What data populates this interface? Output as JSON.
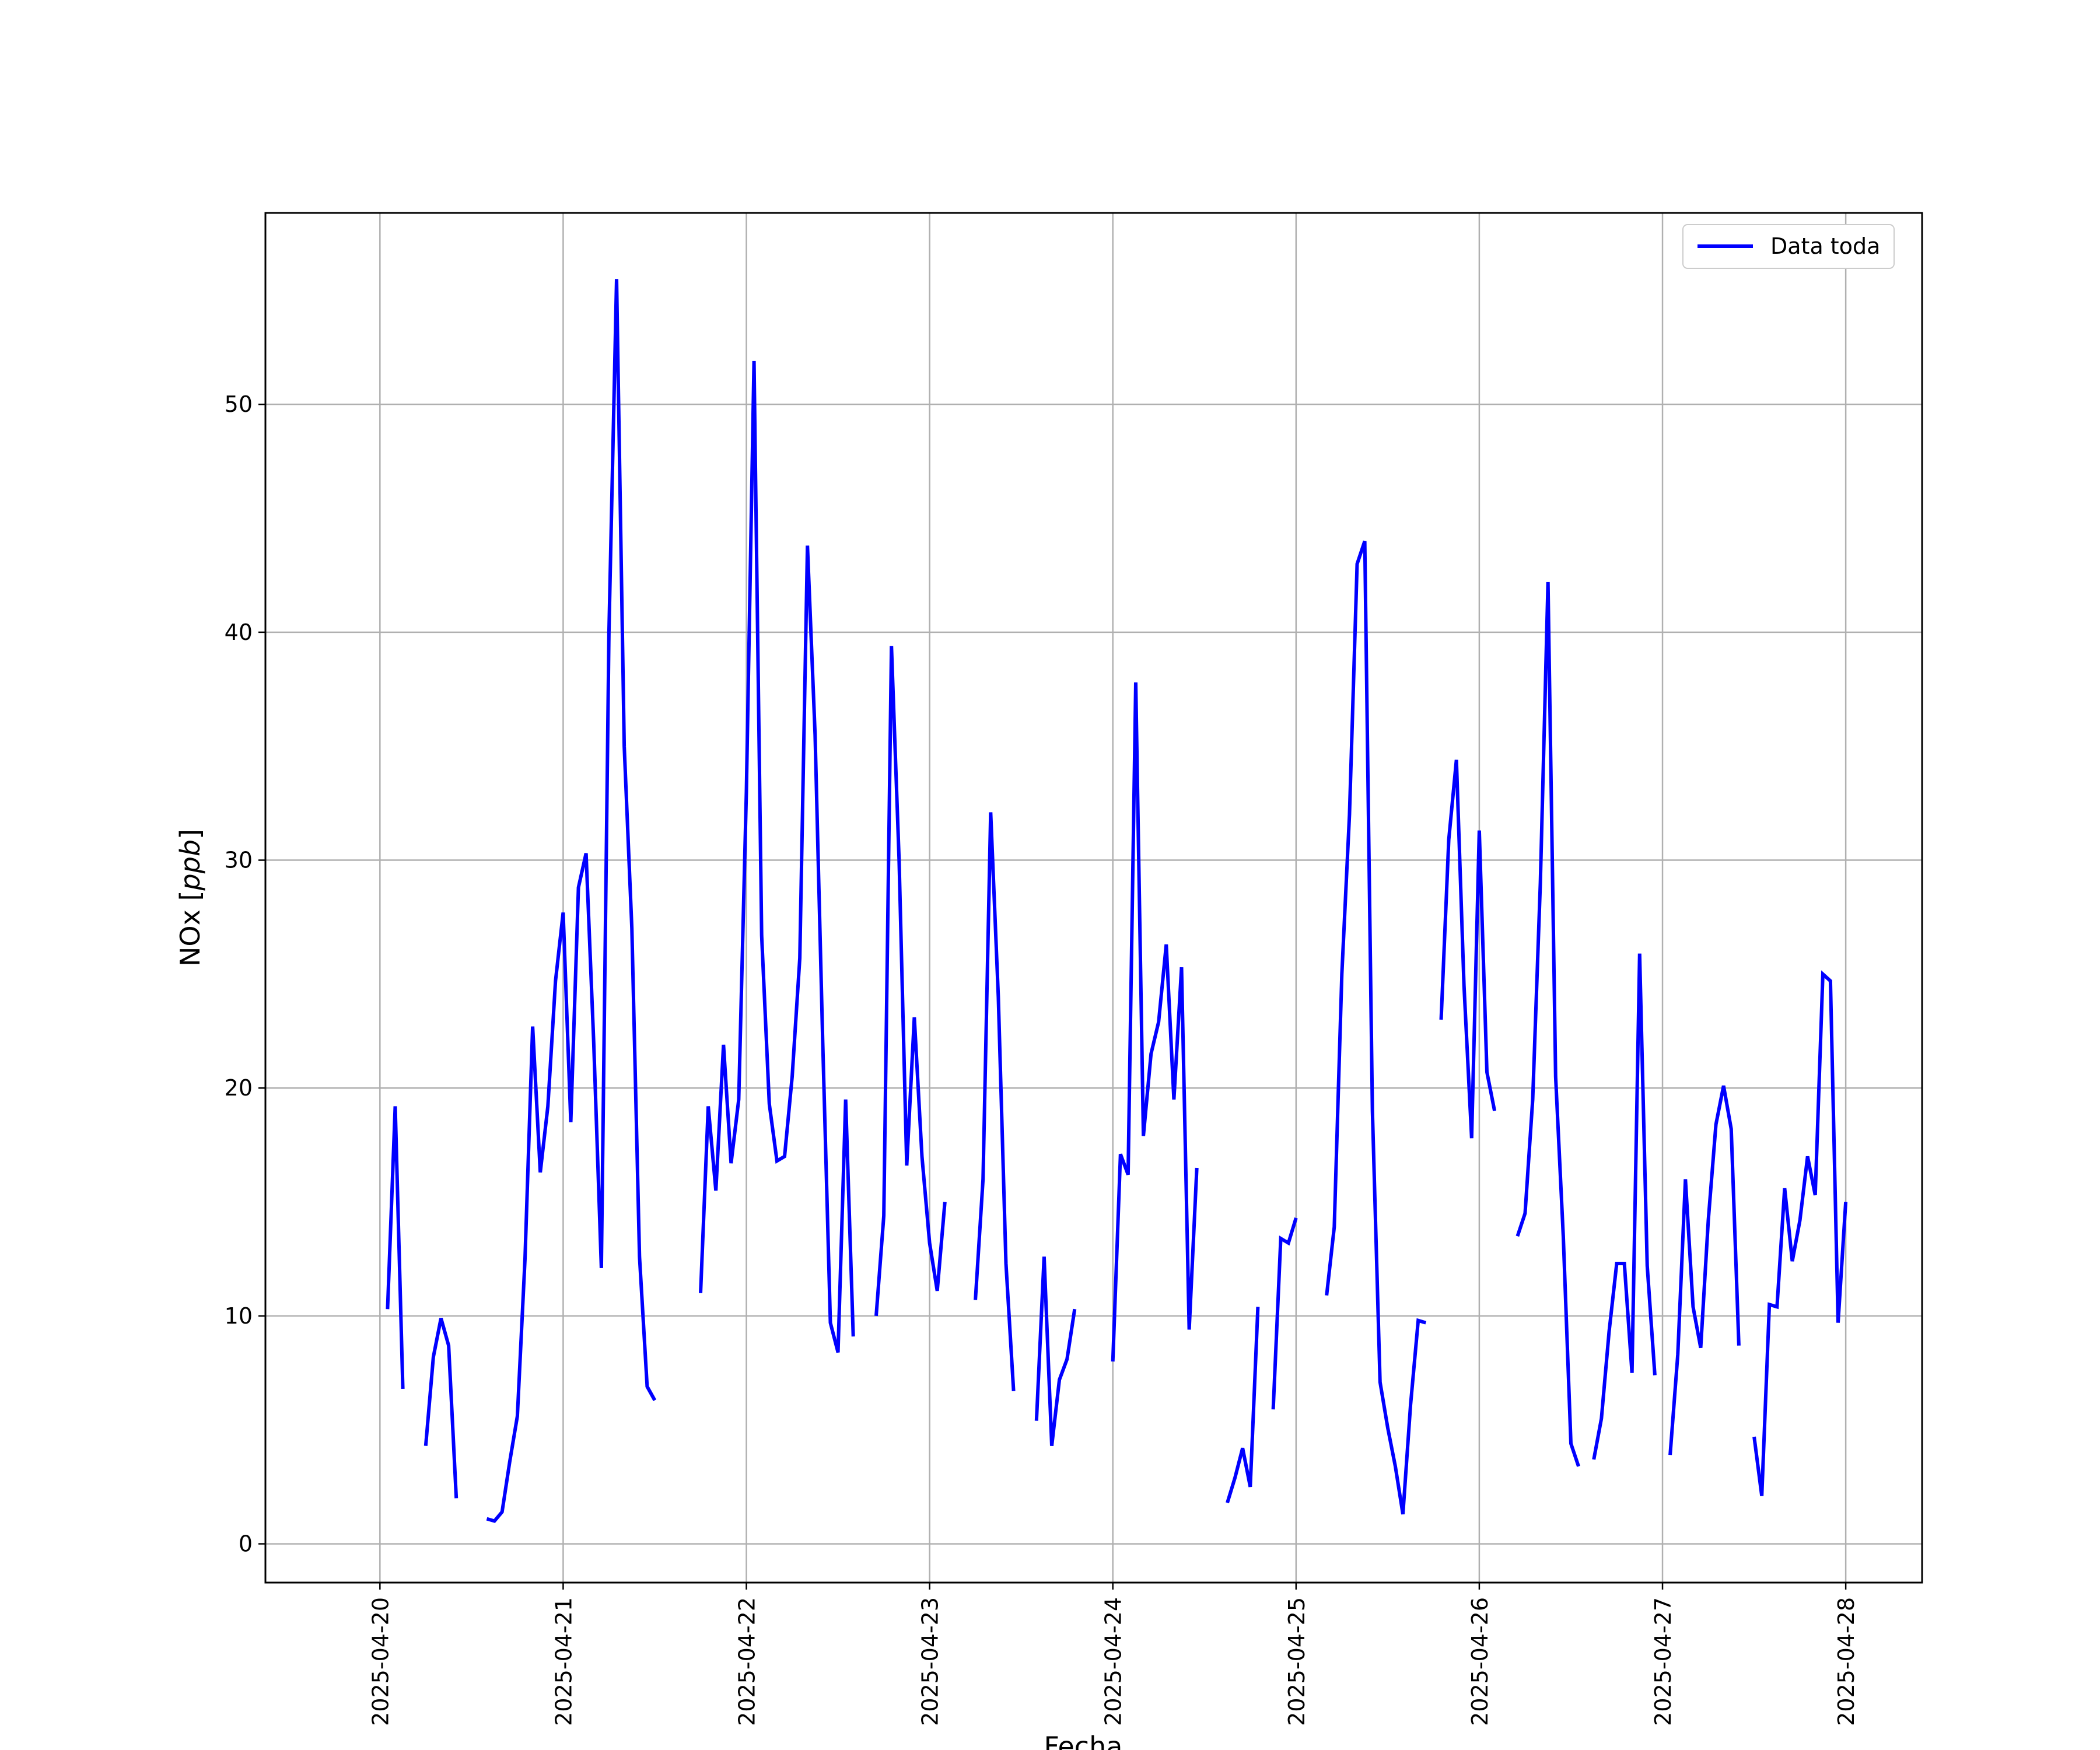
{
  "chart_data": {
    "type": "line",
    "xlabel": "Fecha",
    "ylabel": "NOx [ppb]",
    "ylabel_parts": {
      "prefix": "NOx [",
      "unit": "ppb",
      "suffix": "]"
    },
    "x_ticks": [
      "2025-04-20",
      "2025-04-21",
      "2025-04-22",
      "2025-04-23",
      "2025-04-24",
      "2025-04-25",
      "2025-04-26",
      "2025-04-27",
      "2025-04-28"
    ],
    "y_ticks": [
      0,
      10,
      20,
      30,
      40,
      50
    ],
    "xlim": [
      "2025-04-19 09:00",
      "2025-04-28 10:00"
    ],
    "ylim": [
      -1.7,
      58.4
    ],
    "grid": true,
    "legend_position": "top-right",
    "line_color": "#0000ff",
    "series": [
      {
        "name": "Data toda",
        "segments": [
          [
            [
              "2025-04-20 01:00",
              10.3
            ],
            [
              "2025-04-20 02:00",
              19.2
            ],
            [
              "2025-04-20 03:00",
              6.8
            ]
          ],
          [
            [
              "2025-04-20 06:00",
              4.3
            ],
            [
              "2025-04-20 07:00",
              8.2
            ],
            [
              "2025-04-20 08:00",
              9.9
            ],
            [
              "2025-04-20 09:00",
              8.7
            ],
            [
              "2025-04-20 10:00",
              2.0
            ]
          ],
          [
            [
              "2025-04-20 14:00",
              1.1
            ],
            [
              "2025-04-20 15:00",
              1.0
            ],
            [
              "2025-04-20 16:00",
              1.4
            ],
            [
              "2025-04-20 17:00",
              3.6
            ],
            [
              "2025-04-20 18:00",
              5.6
            ],
            [
              "2025-04-20 19:00",
              12.5
            ],
            [
              "2025-04-20 20:00",
              22.7
            ],
            [
              "2025-04-20 21:00",
              16.3
            ],
            [
              "2025-04-20 22:00",
              19.2
            ],
            [
              "2025-04-20 23:00",
              24.7
            ],
            [
              "2025-04-21 00:00",
              27.7
            ],
            [
              "2025-04-21 01:00",
              18.5
            ],
            [
              "2025-04-21 02:00",
              28.8
            ],
            [
              "2025-04-21 03:00",
              30.3
            ],
            [
              "2025-04-21 04:00",
              22.0
            ],
            [
              "2025-04-21 05:00",
              12.1
            ],
            [
              "2025-04-21 06:00",
              40.0
            ],
            [
              "2025-04-21 07:00",
              55.5
            ],
            [
              "2025-04-21 08:00",
              35.0
            ],
            [
              "2025-04-21 09:00",
              27.0
            ],
            [
              "2025-04-21 10:00",
              12.6
            ],
            [
              "2025-04-21 11:00",
              6.9
            ],
            [
              "2025-04-21 12:00",
              6.3
            ]
          ],
          [
            [
              "2025-04-21 18:00",
              11.0
            ],
            [
              "2025-04-21 19:00",
              19.2
            ],
            [
              "2025-04-21 20:00",
              15.5
            ],
            [
              "2025-04-21 21:00",
              21.9
            ],
            [
              "2025-04-21 22:00",
              16.7
            ],
            [
              "2025-04-21 23:00",
              19.5
            ],
            [
              "2025-04-22 00:00",
              33.0
            ],
            [
              "2025-04-22 01:00",
              51.9
            ],
            [
              "2025-04-22 02:00",
              26.7
            ],
            [
              "2025-04-22 03:00",
              19.3
            ],
            [
              "2025-04-22 04:00",
              16.8
            ],
            [
              "2025-04-22 05:00",
              17.0
            ],
            [
              "2025-04-22 06:00",
              20.5
            ],
            [
              "2025-04-22 07:00",
              25.7
            ],
            [
              "2025-04-22 08:00",
              43.8
            ],
            [
              "2025-04-22 09:00",
              35.5
            ],
            [
              "2025-04-22 10:00",
              22.0
            ],
            [
              "2025-04-22 11:00",
              9.7
            ],
            [
              "2025-04-22 12:00",
              8.4
            ],
            [
              "2025-04-22 13:00",
              19.5
            ],
            [
              "2025-04-22 14:00",
              9.1
            ]
          ],
          [
            [
              "2025-04-22 17:00",
              10.0
            ],
            [
              "2025-04-22 18:00",
              14.4
            ],
            [
              "2025-04-22 19:00",
              39.4
            ],
            [
              "2025-04-22 20:00",
              30.0
            ],
            [
              "2025-04-22 21:00",
              16.6
            ],
            [
              "2025-04-22 22:00",
              23.1
            ],
            [
              "2025-04-22 23:00",
              17.0
            ],
            [
              "2025-04-23 00:00",
              13.2
            ],
            [
              "2025-04-23 01:00",
              11.1
            ],
            [
              "2025-04-23 02:00",
              15.0
            ]
          ],
          [
            [
              "2025-04-23 06:00",
              10.7
            ],
            [
              "2025-04-23 07:00",
              16.0
            ],
            [
              "2025-04-23 08:00",
              32.1
            ],
            [
              "2025-04-23 09:00",
              24.0
            ],
            [
              "2025-04-23 10:00",
              12.3
            ],
            [
              "2025-04-23 11:00",
              6.7
            ]
          ],
          [
            [
              "2025-04-23 14:00",
              5.4
            ],
            [
              "2025-04-23 15:00",
              12.6
            ],
            [
              "2025-04-23 16:00",
              4.3
            ],
            [
              "2025-04-23 17:00",
              7.2
            ],
            [
              "2025-04-23 18:00",
              8.1
            ],
            [
              "2025-04-23 19:00",
              10.3
            ]
          ],
          [
            [
              "2025-04-24 00:00",
              8.0
            ],
            [
              "2025-04-24 01:00",
              17.1
            ],
            [
              "2025-04-24 02:00",
              16.2
            ],
            [
              "2025-04-24 03:00",
              37.8
            ],
            [
              "2025-04-24 04:00",
              17.9
            ],
            [
              "2025-04-24 05:00",
              21.5
            ],
            [
              "2025-04-24 06:00",
              22.9
            ],
            [
              "2025-04-24 07:00",
              26.3
            ],
            [
              "2025-04-24 08:00",
              19.5
            ],
            [
              "2025-04-24 09:00",
              25.3
            ],
            [
              "2025-04-24 10:00",
              9.4
            ],
            [
              "2025-04-24 11:00",
              16.5
            ]
          ],
          [
            [
              "2025-04-24 15:00",
              1.8
            ],
            [
              "2025-04-24 16:00",
              2.9
            ],
            [
              "2025-04-24 17:00",
              4.2
            ],
            [
              "2025-04-24 18:00",
              2.5
            ],
            [
              "2025-04-24 19:00",
              10.4
            ]
          ],
          [
            [
              "2025-04-24 21:00",
              5.9
            ],
            [
              "2025-04-24 22:00",
              13.4
            ],
            [
              "2025-04-24 23:00",
              13.2
            ],
            [
              "2025-04-25 00:00",
              14.3
            ]
          ],
          [
            [
              "2025-04-25 04:00",
              10.9
            ],
            [
              "2025-04-25 05:00",
              13.9
            ],
            [
              "2025-04-25 06:00",
              25.0
            ],
            [
              "2025-04-25 07:00",
              32.0
            ],
            [
              "2025-04-25 08:00",
              43.0
            ],
            [
              "2025-04-25 09:00",
              44.0
            ],
            [
              "2025-04-25 10:00",
              19.0
            ],
            [
              "2025-04-25 11:00",
              7.1
            ],
            [
              "2025-04-25 12:00",
              5.1
            ],
            [
              "2025-04-25 13:00",
              3.4
            ],
            [
              "2025-04-25 14:00",
              1.3
            ],
            [
              "2025-04-25 15:00",
              6.1
            ],
            [
              "2025-04-25 16:00",
              9.8
            ],
            [
              "2025-04-25 17:00",
              9.7
            ]
          ],
          [
            [
              "2025-04-25 19:00",
              23.0
            ],
            [
              "2025-04-25 20:00",
              30.9
            ],
            [
              "2025-04-25 21:00",
              34.4
            ],
            [
              "2025-04-25 22:00",
              24.5
            ],
            [
              "2025-04-25 23:00",
              17.8
            ],
            [
              "2025-04-26 00:00",
              31.3
            ],
            [
              "2025-04-26 01:00",
              20.7
            ],
            [
              "2025-04-26 02:00",
              19.0
            ]
          ],
          [
            [
              "2025-04-26 05:00",
              13.5
            ],
            [
              "2025-04-26 06:00",
              14.5
            ],
            [
              "2025-04-26 07:00",
              19.5
            ],
            [
              "2025-04-26 08:00",
              29.0
            ],
            [
              "2025-04-26 09:00",
              42.2
            ],
            [
              "2025-04-26 10:00",
              20.5
            ],
            [
              "2025-04-26 11:00",
              13.5
            ],
            [
              "2025-04-26 12:00",
              4.4
            ],
            [
              "2025-04-26 13:00",
              3.4
            ]
          ],
          [
            [
              "2025-04-26 15:00",
              3.7
            ],
            [
              "2025-04-26 16:00",
              5.5
            ],
            [
              "2025-04-26 17:00",
              9.3
            ],
            [
              "2025-04-26 18:00",
              12.3
            ],
            [
              "2025-04-26 19:00",
              12.3
            ],
            [
              "2025-04-26 20:00",
              7.5
            ],
            [
              "2025-04-26 21:00",
              25.9
            ],
            [
              "2025-04-26 22:00",
              12.2
            ],
            [
              "2025-04-26 23:00",
              7.4
            ]
          ],
          [
            [
              "2025-04-27 01:00",
              3.9
            ],
            [
              "2025-04-27 02:00",
              8.3
            ],
            [
              "2025-04-27 03:00",
              16.0
            ],
            [
              "2025-04-27 04:00",
              10.4
            ],
            [
              "2025-04-27 05:00",
              8.6
            ],
            [
              "2025-04-27 06:00",
              14.2
            ],
            [
              "2025-04-27 07:00",
              18.4
            ],
            [
              "2025-04-27 08:00",
              20.1
            ],
            [
              "2025-04-27 09:00",
              18.2
            ],
            [
              "2025-04-27 10:00",
              8.7
            ]
          ],
          [
            [
              "2025-04-27 12:00",
              4.7
            ],
            [
              "2025-04-27 13:00",
              2.1
            ],
            [
              "2025-04-27 14:00",
              10.5
            ],
            [
              "2025-04-27 15:00",
              10.4
            ],
            [
              "2025-04-27 16:00",
              15.6
            ],
            [
              "2025-04-27 17:00",
              12.4
            ],
            [
              "2025-04-27 18:00",
              14.2
            ],
            [
              "2025-04-27 19:00",
              17.0
            ],
            [
              "2025-04-27 20:00",
              15.3
            ],
            [
              "2025-04-27 21:00",
              25.0
            ],
            [
              "2025-04-27 22:00",
              24.7
            ],
            [
              "2025-04-27 23:00",
              9.7
            ],
            [
              "2025-04-28 00:00",
              15.0
            ]
          ]
        ]
      }
    ]
  }
}
